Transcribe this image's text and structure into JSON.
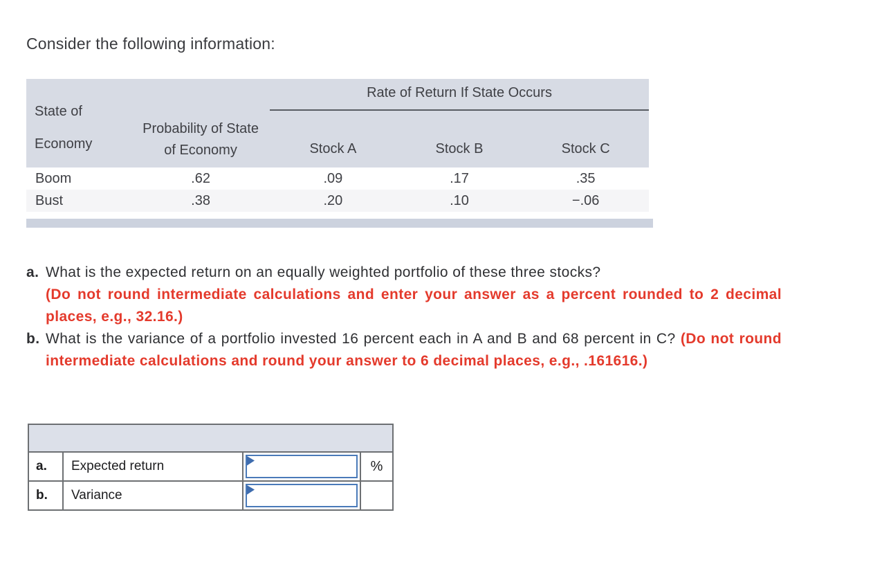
{
  "intro": {
    "text": "Consider the following information:"
  },
  "info_table": {
    "group_header": "Rate of Return If State Occurs",
    "headers": {
      "state": "State of Economy",
      "probability": "Probability of State of Economy",
      "stock_a": "Stock A",
      "stock_b": "Stock B",
      "stock_c": "Stock C"
    },
    "rows": [
      {
        "state": "Boom",
        "probability": ".62",
        "stock_a": ".09",
        "stock_b": ".17",
        "stock_c": ".35"
      },
      {
        "state": "Bust",
        "probability": ".38",
        "stock_a": ".20",
        "stock_b": ".10",
        "stock_c": "−.06"
      }
    ]
  },
  "questions": [
    {
      "label": "a.",
      "text": "What is the expected return on an equally weighted portfolio of these three stocks?",
      "instruction": "(Do not round intermediate calculations and enter your answer as a percent rounded to 2 decimal places, e.g., 32.16.)"
    },
    {
      "label": "b.",
      "text": "What is the variance of a portfolio invested 16 percent each in A and B and 68 percent in C?",
      "instruction": "(Do not round intermediate calculations and round your answer to 6 decimal places, e.g., .161616.)"
    }
  ],
  "answer_table": {
    "rows": [
      {
        "label": "a.",
        "name": "Expected return",
        "value": "",
        "unit": "%"
      },
      {
        "label": "b.",
        "name": "Variance",
        "value": "",
        "unit": ""
      }
    ]
  },
  "colors": {
    "header_bg": "#d7dbe4",
    "alt_row_bg": "#f5f5f7",
    "rule_gray": "#585c62",
    "footer_bar_bg": "#ccd2de",
    "instruction_red": "#e43a2c",
    "input_border_blue": "#4a7ab9",
    "flag_blue": "#3e6cae",
    "answer_header_bg": "#dce0e9",
    "answer_border": "#6d7073"
  }
}
